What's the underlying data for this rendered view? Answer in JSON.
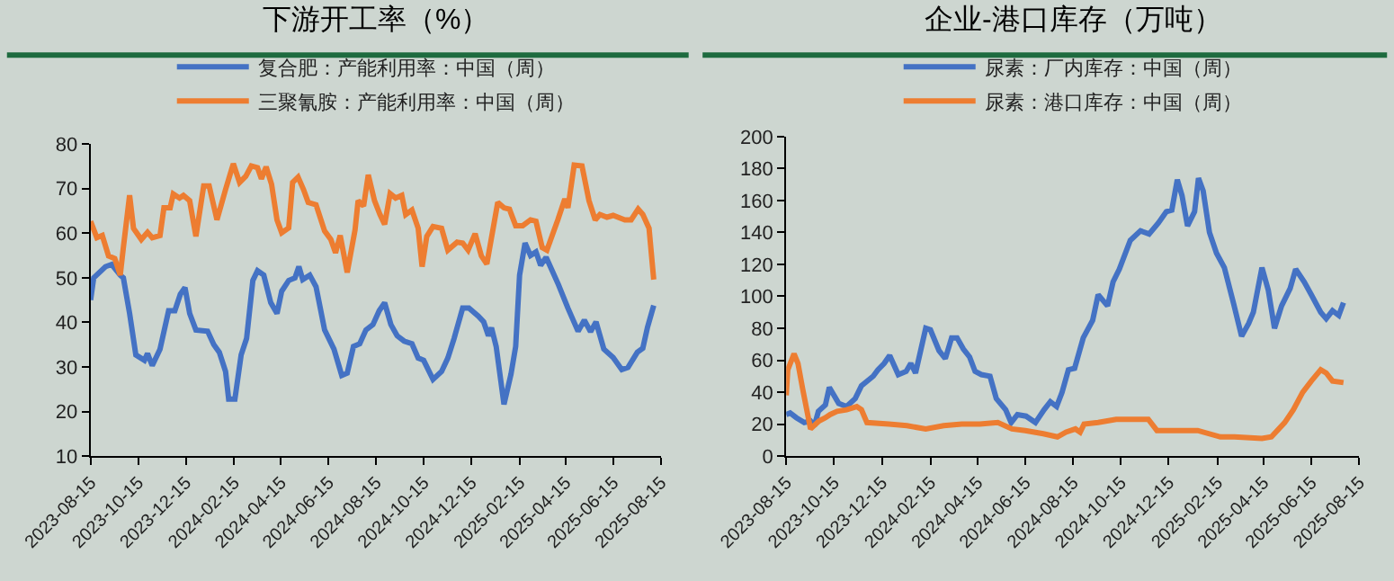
{
  "chart_data": [
    {
      "type": "line",
      "title": "下游开工率（%）",
      "legend": "top",
      "xlim": [
        "2023-08-15",
        "2025-08-15"
      ],
      "xticks": [
        "2023-08-15",
        "2023-10-15",
        "2023-12-15",
        "2024-02-15",
        "2024-04-15",
        "2024-06-15",
        "2024-08-15",
        "2024-10-15",
        "2024-12-15",
        "2025-02-15",
        "2025-04-15",
        "2025-06-15",
        "2025-08-15"
      ],
      "ylim": [
        10,
        80
      ],
      "yticks": [
        10,
        20,
        30,
        40,
        50,
        60,
        70,
        80
      ],
      "grid": false,
      "marker": "none",
      "line_style": "solid",
      "series": [
        {
          "name": "复合肥：产能利用率：中国（周）",
          "color": "#4472c4",
          "x": [
            "2023-08-15",
            "2023-08-19",
            "2023-09-03",
            "2023-09-11",
            "2023-09-22",
            "2023-09-26",
            "2023-10-04",
            "2023-10-12",
            "2023-10-23",
            "2023-10-27",
            "2023-11-02",
            "2023-11-12",
            "2023-11-23",
            "2023-12-01",
            "2023-12-08",
            "2023-12-14",
            "2023-12-20",
            "2023-12-28",
            "2024-01-12",
            "2024-01-20",
            "2024-01-27",
            "2024-02-04",
            "2024-02-08",
            "2024-02-16",
            "2024-02-24",
            "2024-03-02",
            "2024-03-10",
            "2024-03-16",
            "2024-03-24",
            "2024-04-02",
            "2024-04-10",
            "2024-04-16",
            "2024-04-25",
            "2024-05-03",
            "2024-05-08",
            "2024-05-13",
            "2024-05-22",
            "2024-05-30",
            "2024-06-10",
            "2024-06-22",
            "2024-07-02",
            "2024-07-09",
            "2024-07-17",
            "2024-07-25",
            "2024-08-02",
            "2024-08-11",
            "2024-08-19",
            "2024-08-26",
            "2024-09-03",
            "2024-09-11",
            "2024-09-20",
            "2024-09-30",
            "2024-10-08",
            "2024-10-15",
            "2024-10-27",
            "2024-11-07",
            "2024-11-15",
            "2024-11-23",
            "2024-12-04",
            "2024-12-12",
            "2024-12-24",
            "2024-12-31",
            "2025-01-06",
            "2025-01-10",
            "2025-01-16",
            "2025-01-26",
            "2025-02-04",
            "2025-02-10",
            "2025-02-15",
            "2025-02-22",
            "2025-03-01",
            "2025-03-08",
            "2025-03-14",
            "2025-03-21",
            "2025-03-28",
            "2025-04-06",
            "2025-04-18",
            "2025-05-01",
            "2025-05-09",
            "2025-05-17",
            "2025-05-24",
            "2025-06-03",
            "2025-06-15",
            "2025-06-26",
            "2025-07-04",
            "2025-07-16",
            "2025-07-23",
            "2025-07-29",
            "2025-08-06"
          ],
          "values": [
            45,
            50,
            52.5,
            53,
            50.6,
            50,
            42,
            32.7,
            31.5,
            33,
            30.3,
            34,
            42.6,
            42.6,
            46.3,
            47.8,
            42,
            38.3,
            38,
            35,
            33.3,
            29,
            22.8,
            22.8,
            32.7,
            36.4,
            49.4,
            51.6,
            50.6,
            44.4,
            42,
            47,
            49.4,
            50,
            52.5,
            49.6,
            50.6,
            48,
            38.3,
            34,
            28.1,
            28.6,
            34.6,
            35.2,
            38.3,
            39.5,
            42.6,
            44.4,
            39.5,
            37,
            35.8,
            35.2,
            32,
            31.5,
            27.2,
            29,
            32,
            36.4,
            43.2,
            43.2,
            41.4,
            40.1,
            37,
            38.8,
            34.6,
            21.6,
            28.4,
            34.6,
            50.6,
            57.8,
            55,
            55.8,
            52.8,
            54.6,
            51.9,
            48.4,
            43.2,
            38,
            40.5,
            37.9,
            40.1,
            34,
            32.1,
            29.4,
            29.9,
            33.3,
            34.2,
            38.9,
            43.8
          ]
        },
        {
          "name": "三聚氰胺：产能利用率：中国（周）",
          "color": "#ed7d31",
          "x": [
            "2023-08-15",
            "2023-08-23",
            "2023-08-30",
            "2023-09-07",
            "2023-09-15",
            "2023-09-22",
            "2023-09-26",
            "2023-10-04",
            "2023-10-09",
            "2023-10-19",
            "2023-10-27",
            "2023-11-02",
            "2023-11-12",
            "2023-11-17",
            "2023-11-25",
            "2023-11-29",
            "2023-12-07",
            "2023-12-12",
            "2023-12-20",
            "2023-12-28",
            "2024-01-07",
            "2024-01-14",
            "2024-01-24",
            "2024-02-04",
            "2024-02-14",
            "2024-02-22",
            "2024-03-01",
            "2024-03-08",
            "2024-03-16",
            "2024-03-21",
            "2024-03-27",
            "2024-04-03",
            "2024-04-10",
            "2024-04-16",
            "2024-04-25",
            "2024-04-30",
            "2024-05-07",
            "2024-05-14",
            "2024-05-20",
            "2024-05-30",
            "2024-06-10",
            "2024-06-18",
            "2024-06-24",
            "2024-06-30",
            "2024-07-09",
            "2024-07-19",
            "2024-07-23",
            "2024-07-30",
            "2024-08-05",
            "2024-08-13",
            "2024-08-20",
            "2024-08-26",
            "2024-09-02",
            "2024-09-09",
            "2024-09-17",
            "2024-09-22",
            "2024-09-30",
            "2024-10-08",
            "2024-10-13",
            "2024-10-19",
            "2024-10-27",
            "2024-11-07",
            "2024-11-15",
            "2024-11-27",
            "2024-12-04",
            "2024-12-11",
            "2024-12-20",
            "2024-12-28",
            "2025-01-04",
            "2025-01-18",
            "2025-01-26",
            "2025-02-02",
            "2025-02-10",
            "2025-02-19",
            "2025-03-01",
            "2025-03-08",
            "2025-03-16",
            "2025-03-22",
            "2025-04-05",
            "2025-04-14",
            "2025-04-18",
            "2025-04-26",
            "2025-05-06",
            "2025-05-15",
            "2025-05-23",
            "2025-05-29",
            "2025-06-07",
            "2025-06-15",
            "2025-06-30",
            "2025-07-08",
            "2025-07-17",
            "2025-07-23",
            "2025-07-31",
            "2025-08-06"
          ],
          "values": [
            62.7,
            59,
            59.5,
            54.9,
            54.3,
            50.6,
            56.8,
            68.5,
            61.1,
            58.6,
            60.2,
            59,
            59.5,
            65.7,
            65.7,
            68.8,
            67.9,
            68.5,
            67.3,
            59.3,
            70.6,
            70.6,
            63,
            69.8,
            75.6,
            71.4,
            72.8,
            75.1,
            74.7,
            72.2,
            74.9,
            71,
            63,
            60.1,
            61.2,
            71.4,
            72.6,
            69.8,
            66.9,
            66.4,
            60.5,
            58.6,
            55.6,
            59.5,
            51.2,
            60.7,
            67.3,
            66.1,
            73.1,
            67.3,
            64.2,
            62,
            68.9,
            67.9,
            68.5,
            64.2,
            65.2,
            61.1,
            52.5,
            59.3,
            61.5,
            61.1,
            56.2,
            58,
            57.8,
            56.2,
            59.9,
            54.9,
            53.1,
            66.9,
            65.7,
            65.4,
            61.7,
            61.7,
            63,
            62.7,
            56.8,
            56.2,
            63,
            67.7,
            65.7,
            75.3,
            75.1,
            67.3,
            63,
            64.2,
            63.6,
            64,
            63,
            63,
            65.4,
            64.2,
            61.1,
            49.6
          ]
        }
      ]
    },
    {
      "type": "line",
      "title": "企业-港口库存（万吨）",
      "legend": "top",
      "xlim": [
        "2023-08-15",
        "2025-08-15"
      ],
      "xticks": [
        "2023-08-15",
        "2023-10-15",
        "2023-12-15",
        "2024-02-15",
        "2024-04-15",
        "2024-06-15",
        "2024-08-15",
        "2024-10-15",
        "2024-12-15",
        "2025-02-15",
        "2025-04-15",
        "2025-06-15",
        "2025-08-15"
      ],
      "ylim": [
        0,
        200
      ],
      "yticks": [
        0,
        20,
        40,
        60,
        80,
        100,
        120,
        140,
        160,
        180,
        200
      ],
      "grid": false,
      "marker": "none",
      "line_style": "solid",
      "series": [
        {
          "name": "尿素：厂内库存：中国（周）",
          "color": "#4472c4",
          "x": [
            "2023-08-15",
            "2023-08-20",
            "2023-08-28",
            "2023-09-07",
            "2023-09-15",
            "2023-09-20",
            "2023-09-25",
            "2023-10-04",
            "2023-10-09",
            "2023-10-21",
            "2023-10-31",
            "2023-11-11",
            "2023-11-19",
            "2023-12-04",
            "2023-12-10",
            "2023-12-18",
            "2023-12-25",
            "2024-01-05",
            "2024-01-15",
            "2024-01-21",
            "2024-01-27",
            "2024-02-09",
            "2024-02-15",
            "2024-02-26",
            "2024-03-05",
            "2024-03-13",
            "2024-03-20",
            "2024-03-28",
            "2024-04-05",
            "2024-04-12",
            "2024-04-20",
            "2024-05-01",
            "2024-05-09",
            "2024-05-21",
            "2024-05-28",
            "2024-06-05",
            "2024-06-16",
            "2024-06-28",
            "2024-07-09",
            "2024-07-17",
            "2024-07-25",
            "2024-08-01",
            "2024-08-09",
            "2024-08-17",
            "2024-08-28",
            "2024-09-09",
            "2024-09-16",
            "2024-09-28",
            "2024-10-05",
            "2024-10-13",
            "2024-10-27",
            "2024-11-09",
            "2024-11-20",
            "2024-12-02",
            "2024-12-12",
            "2024-12-19",
            "2024-12-26",
            "2025-01-01",
            "2025-01-08",
            "2025-01-17",
            "2025-01-22",
            "2025-01-28",
            "2025-02-05",
            "2025-02-14",
            "2025-02-24",
            "2025-03-08",
            "2025-03-18",
            "2025-03-27",
            "2025-04-02",
            "2025-04-13",
            "2025-04-21",
            "2025-04-29",
            "2025-05-08",
            "2025-05-19",
            "2025-05-26",
            "2025-06-06",
            "2025-06-15",
            "2025-06-27",
            "2025-07-04",
            "2025-07-12",
            "2025-07-20",
            "2025-07-26"
          ],
          "values": [
            26,
            27,
            24,
            21,
            22,
            19,
            28,
            32,
            43,
            33,
            31,
            36,
            44,
            50,
            54,
            58,
            63,
            51,
            53,
            58,
            52,
            80,
            79,
            66,
            61,
            74,
            74,
            67,
            62,
            53,
            51,
            50,
            36,
            29,
            21,
            26,
            25,
            21,
            29,
            34,
            31,
            40,
            54,
            55,
            74,
            85,
            101,
            94,
            109,
            117,
            135,
            141,
            139,
            146,
            153,
            154,
            173,
            163,
            144,
            153,
            174,
            166,
            140,
            127,
            118,
            95,
            75,
            83,
            90,
            118,
            104,
            80,
            94,
            105,
            117,
            109,
            101,
            90,
            86,
            91,
            88,
            96
          ]
        },
        {
          "name": "尿素：港口库存：中国（周）",
          "color": "#ed7d31",
          "x": [
            "2023-08-15",
            "2023-08-17",
            "2023-08-25",
            "2023-08-30",
            "2023-09-05",
            "2023-09-15",
            "2023-09-26",
            "2023-10-04",
            "2023-10-10",
            "2023-10-19",
            "2023-10-31",
            "2023-11-13",
            "2023-11-19",
            "2023-11-26",
            "2023-12-24",
            "2024-01-16",
            "2024-02-09",
            "2024-03-03",
            "2024-03-26",
            "2024-04-18",
            "2024-05-11",
            "2024-05-29",
            "2024-06-15",
            "2024-07-08",
            "2024-07-26",
            "2024-08-06",
            "2024-08-18",
            "2024-08-24",
            "2024-08-29",
            "2024-09-16",
            "2024-10-09",
            "2024-11-19",
            "2024-11-30",
            "2025-01-21",
            "2025-02-19",
            "2025-03-09",
            "2025-04-13",
            "2025-04-25",
            "2025-05-12",
            "2025-05-23",
            "2025-06-04",
            "2025-06-15",
            "2025-06-27",
            "2025-07-04",
            "2025-07-12",
            "2025-07-26"
          ],
          "values": [
            38,
            54,
            64,
            58,
            42,
            17,
            22,
            24,
            26,
            28,
            29,
            31,
            29,
            21,
            20,
            19,
            17,
            19,
            20,
            20,
            21,
            17,
            16,
            14,
            12,
            15,
            17,
            15,
            20,
            21,
            23,
            23,
            16,
            16,
            12,
            12,
            11,
            12,
            21,
            29,
            40,
            47,
            54,
            52,
            47,
            46
          ]
        }
      ]
    }
  ]
}
